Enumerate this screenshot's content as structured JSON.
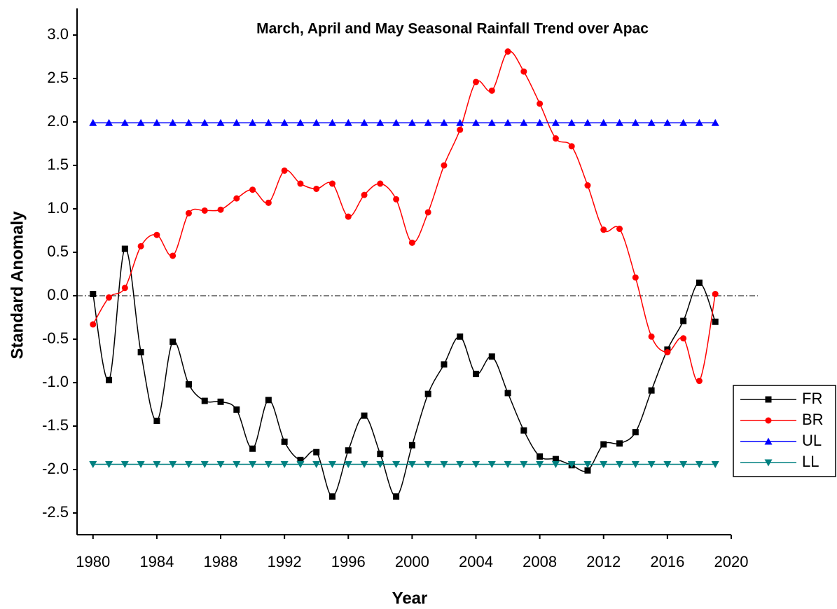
{
  "chart_data": {
    "type": "line",
    "title": "March, April and May Seasonal Rainfall Trend over Apac",
    "x_label": "Year",
    "y_label": "Standard Anomaly",
    "x": [
      1980,
      1981,
      1982,
      1983,
      1984,
      1985,
      1986,
      1987,
      1988,
      1989,
      1990,
      1991,
      1992,
      1993,
      1994,
      1995,
      1996,
      1997,
      1998,
      1999,
      2000,
      2001,
      2002,
      2003,
      2004,
      2005,
      2006,
      2007,
      2008,
      2009,
      2010,
      2011,
      2012,
      2013,
      2014,
      2015,
      2016,
      2017,
      2018,
      2019
    ],
    "series": [
      {
        "name": "FR",
        "color": "#000000",
        "marker": "square",
        "values": [
          0.02,
          -0.97,
          0.54,
          -0.65,
          -1.44,
          -0.53,
          -1.02,
          -1.21,
          -1.22,
          -1.31,
          -1.76,
          -1.2,
          -1.68,
          -1.89,
          -1.8,
          -2.31,
          -1.78,
          -1.38,
          -1.82,
          -2.31,
          -1.72,
          -1.13,
          -0.79,
          -0.47,
          -0.9,
          -0.7,
          -1.12,
          -1.55,
          -1.85,
          -1.88,
          -1.95,
          -2.01,
          -1.71,
          -1.7,
          -1.57,
          -1.09,
          -0.62,
          -0.29,
          0.15,
          -0.3
        ]
      },
      {
        "name": "BR",
        "color": "#ff0000",
        "marker": "circle",
        "values": [
          -0.33,
          -0.02,
          0.09,
          0.57,
          0.7,
          0.46,
          0.95,
          0.98,
          0.99,
          1.12,
          1.22,
          1.07,
          1.44,
          1.29,
          1.23,
          1.29,
          0.91,
          1.16,
          1.29,
          1.11,
          0.61,
          0.96,
          1.5,
          1.91,
          2.46,
          2.36,
          2.81,
          2.58,
          2.21,
          1.81,
          1.72,
          1.27,
          0.76,
          0.77,
          0.21,
          -0.47,
          -0.65,
          -0.49,
          -0.98,
          0.02
        ]
      },
      {
        "name": "UL",
        "color": "#0000ff",
        "marker": "triangle-up",
        "values": [
          1.99,
          1.99,
          1.99,
          1.99,
          1.99,
          1.99,
          1.99,
          1.99,
          1.99,
          1.99,
          1.99,
          1.99,
          1.99,
          1.99,
          1.99,
          1.99,
          1.99,
          1.99,
          1.99,
          1.99,
          1.99,
          1.99,
          1.99,
          1.99,
          1.99,
          1.99,
          1.99,
          1.99,
          1.99,
          1.99,
          1.99,
          1.99,
          1.99,
          1.99,
          1.99,
          1.99,
          1.99,
          1.99,
          1.99,
          1.99
        ]
      },
      {
        "name": "LL",
        "color": "#008080",
        "marker": "triangle-down",
        "values": [
          -1.94,
          -1.94,
          -1.94,
          -1.94,
          -1.94,
          -1.94,
          -1.94,
          -1.94,
          -1.94,
          -1.94,
          -1.94,
          -1.94,
          -1.94,
          -1.94,
          -1.94,
          -1.94,
          -1.94,
          -1.94,
          -1.94,
          -1.94,
          -1.94,
          -1.94,
          -1.94,
          -1.94,
          -1.94,
          -1.94,
          -1.94,
          -1.94,
          -1.94,
          -1.94,
          -1.94,
          -1.94,
          -1.94,
          -1.94,
          -1.94,
          -1.94,
          -1.94,
          -1.94,
          -1.94,
          -1.94
        ]
      }
    ],
    "xlim": [
      1979,
      2020
    ],
    "xticks": [
      1980,
      1984,
      1988,
      1992,
      1996,
      2000,
      2004,
      2008,
      2012,
      2016,
      2020
    ],
    "ylim": [
      -2.75,
      3.25
    ],
    "yticks": [
      {
        "value": -2.5,
        "label": "-2.5"
      },
      {
        "value": -2,
        "label": "-2.0"
      },
      {
        "value": -1.5,
        "label": "-1.5"
      },
      {
        "value": -1,
        "label": "-1.0"
      },
      {
        "value": -0.5,
        "label": "-0.5"
      },
      {
        "value": 0,
        "label": "0.0"
      },
      {
        "value": 0.5,
        "label": "0.5"
      },
      {
        "value": 1,
        "label": "1.0"
      },
      {
        "value": 1.5,
        "label": "1.5"
      },
      {
        "value": 2,
        "label": "2.0"
      },
      {
        "value": 2.5,
        "label": "2.5"
      },
      {
        "value": 3,
        "label": "3.0"
      }
    ],
    "reference_line": 0,
    "legend": "lower right"
  }
}
